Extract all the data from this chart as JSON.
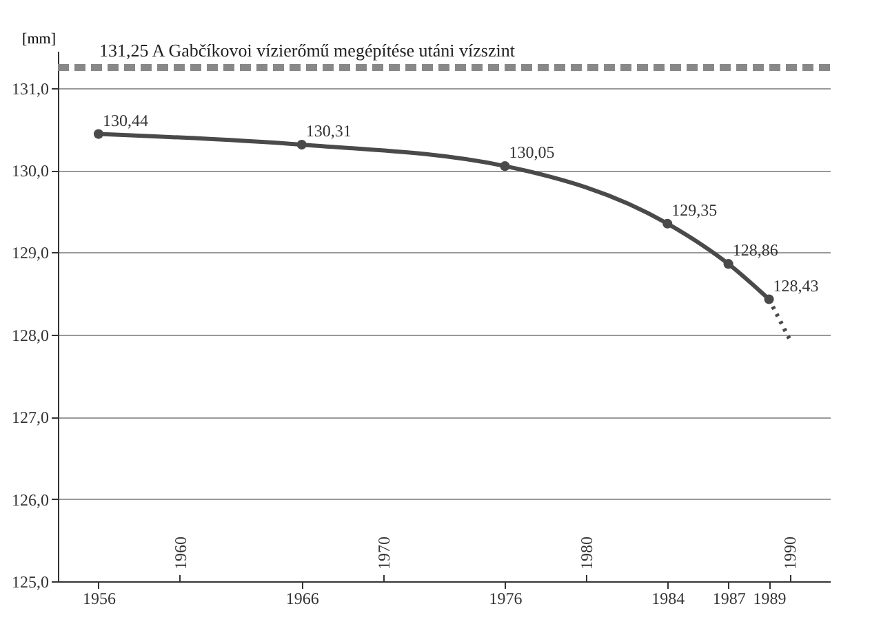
{
  "chart_data": {
    "type": "line",
    "ylabel": "[mm]",
    "x": [
      1956,
      1966,
      1976,
      1984,
      1987,
      1989
    ],
    "series": [
      {
        "color": "#4a4a4a",
        "values": [
          130.44,
          130.31,
          130.05,
          129.35,
          128.86,
          128.43
        ],
        "value_labels": [
          "130,44",
          "130,31",
          "130,05",
          "129,35",
          "128,86",
          "128,43"
        ],
        "marker": "circle",
        "line_style": "solid"
      },
      {
        "color": "#4a4a4a",
        "x": [
          1989,
          1990
        ],
        "values": [
          128.43,
          127.95
        ],
        "marker": "none",
        "line_style": "dotted"
      }
    ],
    "xlim": [
      1954,
      1992
    ],
    "xticks": [
      1956,
      1966,
      1976,
      1984,
      1987,
      1989
    ],
    "x2lim": [
      1954,
      1992
    ],
    "x2ticks": [
      1960,
      1970,
      1980,
      1990
    ],
    "ylim": [
      125,
      131.45
    ],
    "yticks": [
      {
        "value": 125,
        "label": "125,0"
      },
      {
        "value": 126,
        "label": "126,0"
      },
      {
        "value": 127,
        "label": "127,0"
      },
      {
        "value": 128,
        "label": "128,0"
      },
      {
        "value": 129,
        "label": "129,0"
      },
      {
        "value": 130,
        "label": "130,0"
      },
      {
        "value": 131,
        "label": "131,0"
      }
    ],
    "ref_lines": [
      {
        "axis": "y",
        "value": 131.25,
        "label": "131,25  A Gabčíkovoi vízierőmű megépítése utáni vízszint",
        "color": "#888888",
        "line_style": "dashed"
      }
    ],
    "grid": "y"
  }
}
